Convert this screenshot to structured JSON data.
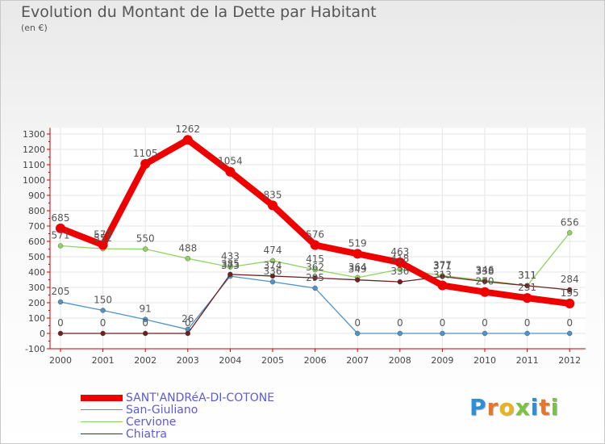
{
  "chart_data": {
    "type": "line",
    "title": "Evolution du Montant de la Dette par Habitant",
    "subtitle": "(en €)",
    "x": [
      "2000",
      "2001",
      "2002",
      "2003",
      "2004",
      "2005",
      "2006",
      "2007",
      "2008",
      "2009",
      "2010",
      "2011",
      "2012"
    ],
    "yticks": [
      -100,
      0,
      100,
      200,
      300,
      400,
      500,
      600,
      700,
      800,
      900,
      1000,
      1100,
      1200,
      1300
    ],
    "ylim": [
      -100,
      1340
    ],
    "series": [
      {
        "name": "SANT'ANDRéA-DI-COTONE",
        "color": "#ee0000",
        "values": [
          685,
          577,
          1105,
          1262,
          1054,
          835,
          576,
          519,
          463,
          313,
          270,
          231,
          195
        ],
        "labels": [
          "685",
          "577",
          "1105",
          "1262",
          "1054",
          "835",
          "576",
          "519",
          "463",
          "313",
          "270",
          "231",
          "195"
        ]
      },
      {
        "name": "San-Giuliano",
        "color": "#4f93c9",
        "values": [
          205,
          150,
          91,
          26,
          373,
          336,
          295,
          0,
          0,
          0,
          0,
          0,
          0
        ],
        "labels": [
          "205",
          "150",
          "91",
          "26",
          "373",
          "336",
          "295",
          "0",
          "0",
          "0",
          "0",
          "0",
          "0"
        ]
      },
      {
        "name": "Cervione",
        "color": "#8ed460",
        "values": [
          571,
          552,
          550,
          488,
          433,
          474,
          415,
          364,
          418,
          377,
          346,
          311,
          656
        ],
        "labels": [
          "571",
          "552",
          "550",
          "488",
          "433",
          "474",
          "415",
          "364",
          "418",
          "377",
          "346",
          "311",
          "656"
        ]
      },
      {
        "name": "Chiatra",
        "color": "#6e1f1f",
        "values": [
          0,
          0,
          0,
          0,
          385,
          374,
          362,
          349,
          336,
          371,
          338,
          311,
          284
        ],
        "labels": [
          "0",
          "0",
          "0",
          "0",
          "385",
          "374",
          "362",
          "349",
          "336",
          "371",
          "338",
          "311",
          "284"
        ]
      }
    ]
  },
  "legend": {
    "items": [
      {
        "label": "SANT'ANDRéA-DI-COTONE"
      },
      {
        "label": "San-Giuliano"
      },
      {
        "label": "Cervione"
      },
      {
        "label": "Chiatra"
      }
    ]
  },
  "logo": {
    "text": "Proxiti"
  }
}
